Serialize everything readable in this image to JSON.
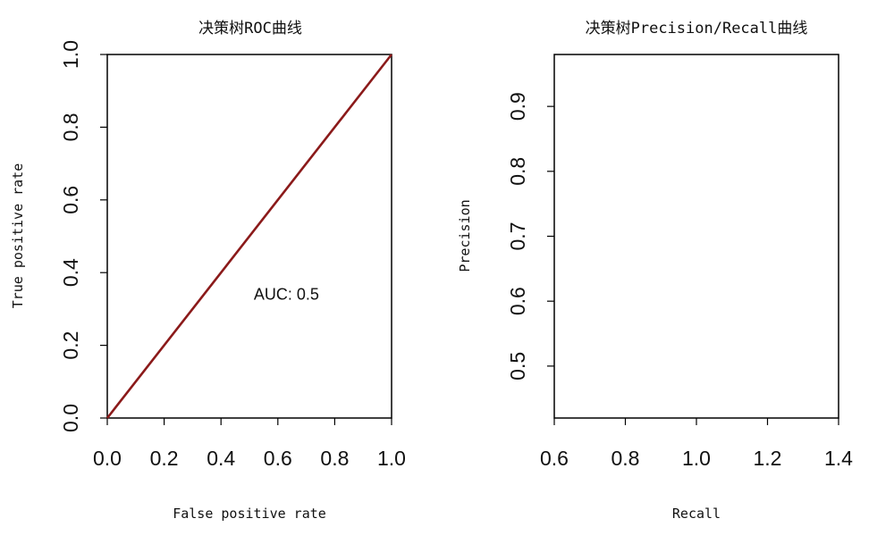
{
  "chart_data": [
    {
      "type": "line",
      "title": "决策树ROC曲线",
      "xlabel": "False positive rate",
      "ylabel": "True positive rate",
      "xlim": [
        0,
        1
      ],
      "ylim": [
        0,
        1
      ],
      "x_ticks": [
        "0.0",
        "0.2",
        "0.4",
        "0.6",
        "0.8",
        "1.0"
      ],
      "y_ticks": [
        "0.0",
        "0.2",
        "0.4",
        "0.6",
        "0.8",
        "1.0"
      ],
      "series": [
        {
          "x": [
            0,
            1
          ],
          "y": [
            0,
            1
          ],
          "color": "#8b1a1a"
        }
      ],
      "annotation": {
        "text": "AUC: 0.5",
        "x": 0.63,
        "y": 0.34
      },
      "grid": false
    },
    {
      "type": "line",
      "title": "决策树Precision/Recall曲线",
      "xlabel": "Recall",
      "ylabel": "Precision",
      "xlim": [
        0.6,
        1.4
      ],
      "ylim": [
        0.42,
        0.98
      ],
      "x_ticks": [
        "0.6",
        "0.8",
        "1.0",
        "1.2",
        "1.4"
      ],
      "y_ticks": [
        "0.5",
        "0.6",
        "0.7",
        "0.8",
        "0.9"
      ],
      "series": [],
      "grid": false
    }
  ]
}
